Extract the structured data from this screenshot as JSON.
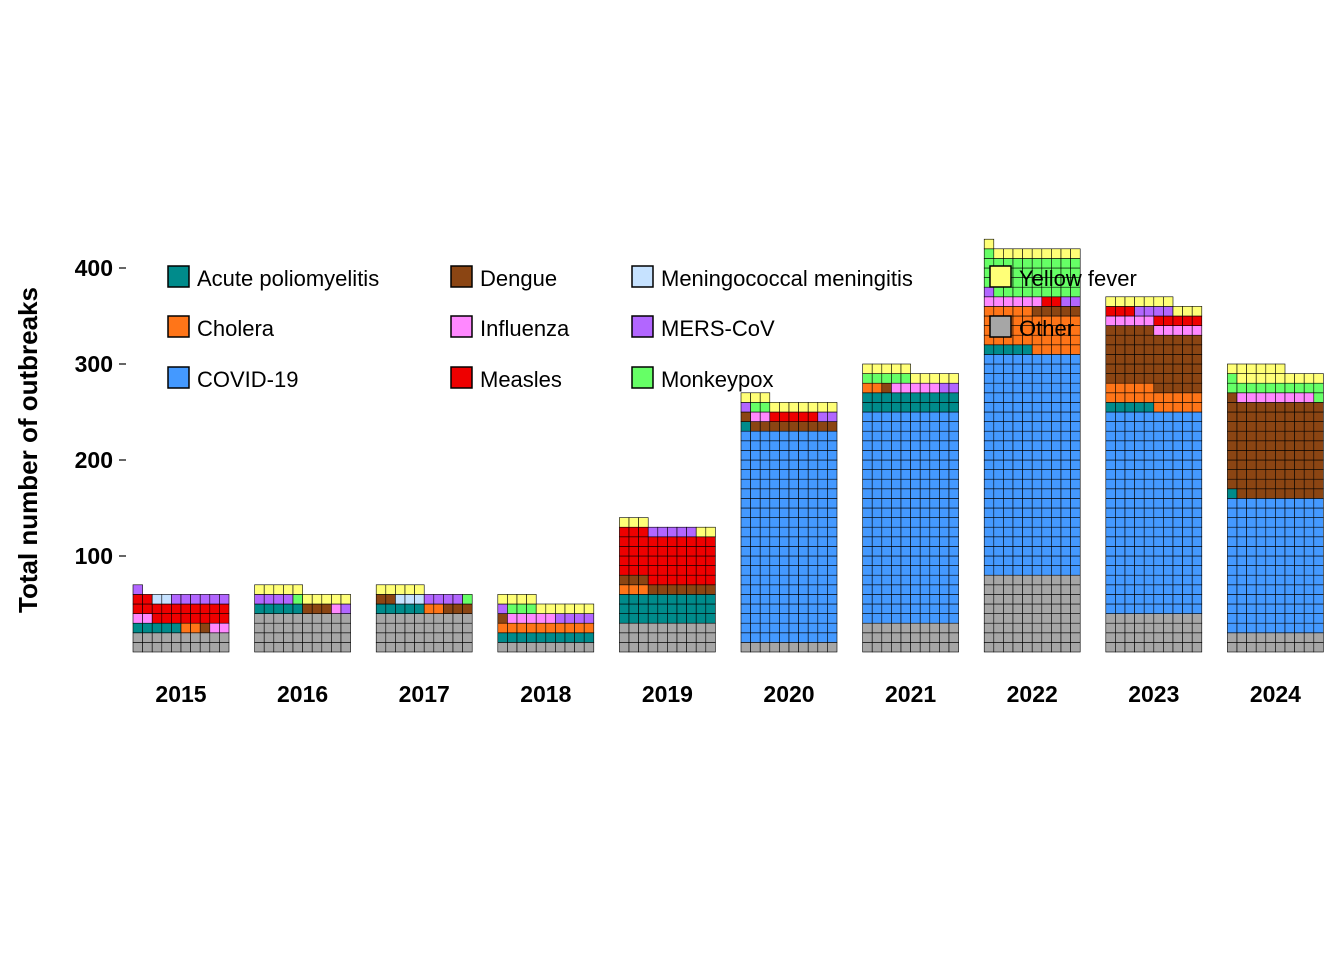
{
  "chart_data": {
    "type": "waffle-bar",
    "title": "",
    "xlabel": "",
    "ylabel": "Total number of outbreaks",
    "ylim": [
      0,
      420
    ],
    "yticks": [
      100,
      200,
      300,
      400
    ],
    "categories": [
      "2015",
      "2016",
      "2017",
      "2018",
      "2019",
      "2020",
      "2021",
      "2022",
      "2023",
      "2024"
    ],
    "columns_per_bar": 10,
    "series": [
      {
        "name": "Other",
        "color": "#a6a6a6",
        "values": [
          20,
          40,
          40,
          10,
          30,
          10,
          30,
          80,
          40,
          20
        ]
      },
      {
        "name": "COVID-19",
        "color": "#4499ff",
        "values": [
          0,
          0,
          0,
          0,
          0,
          220,
          220,
          230,
          210,
          140
        ]
      },
      {
        "name": "Acute poliomyelitis",
        "color": "#008b8b",
        "values": [
          5,
          5,
          5,
          10,
          30,
          1,
          20,
          5,
          5,
          1
        ]
      },
      {
        "name": "Cholera",
        "color": "#ff7518",
        "values": [
          2,
          0,
          2,
          10,
          3,
          0,
          2,
          40,
          20,
          0
        ]
      },
      {
        "name": "Dengue",
        "color": "#8b4513",
        "values": [
          1,
          3,
          5,
          1,
          10,
          10,
          1,
          5,
          60,
          100
        ]
      },
      {
        "name": "Influenza",
        "color": "#ff88ff",
        "values": [
          4,
          1,
          0,
          5,
          0,
          2,
          5,
          6,
          10,
          8
        ]
      },
      {
        "name": "Measles",
        "color": "#ee0000",
        "values": [
          20,
          0,
          0,
          0,
          50,
          5,
          0,
          2,
          8,
          0
        ]
      },
      {
        "name": "Meningococcal meningitis",
        "color": "#c6e2ff",
        "values": [
          2,
          0,
          3,
          0,
          0,
          0,
          0,
          0,
          0,
          0
        ]
      },
      {
        "name": "MERS-CoV",
        "color": "#b266ff",
        "values": [
          7,
          5,
          4,
          5,
          5,
          3,
          2,
          3,
          4,
          0
        ]
      },
      {
        "name": "Monkeypox",
        "color": "#66ff66",
        "values": [
          0,
          1,
          1,
          3,
          0,
          2,
          5,
          40,
          0,
          12
        ]
      },
      {
        "name": "Yellow fever",
        "color": "#ffff77",
        "values": [
          0,
          10,
          5,
          10,
          5,
          10,
          10,
          10,
          10,
          15
        ]
      }
    ],
    "legend": {
      "placement": "top",
      "rows": [
        [
          "Acute poliomyelitis",
          "Dengue",
          "Meningococcal meningitis",
          "Yellow fever"
        ],
        [
          "Cholera",
          "Influenza",
          "MERS-CoV",
          "Other"
        ],
        [
          "COVID-19",
          "Measles",
          "Monkeypox"
        ]
      ]
    },
    "grid": false
  }
}
